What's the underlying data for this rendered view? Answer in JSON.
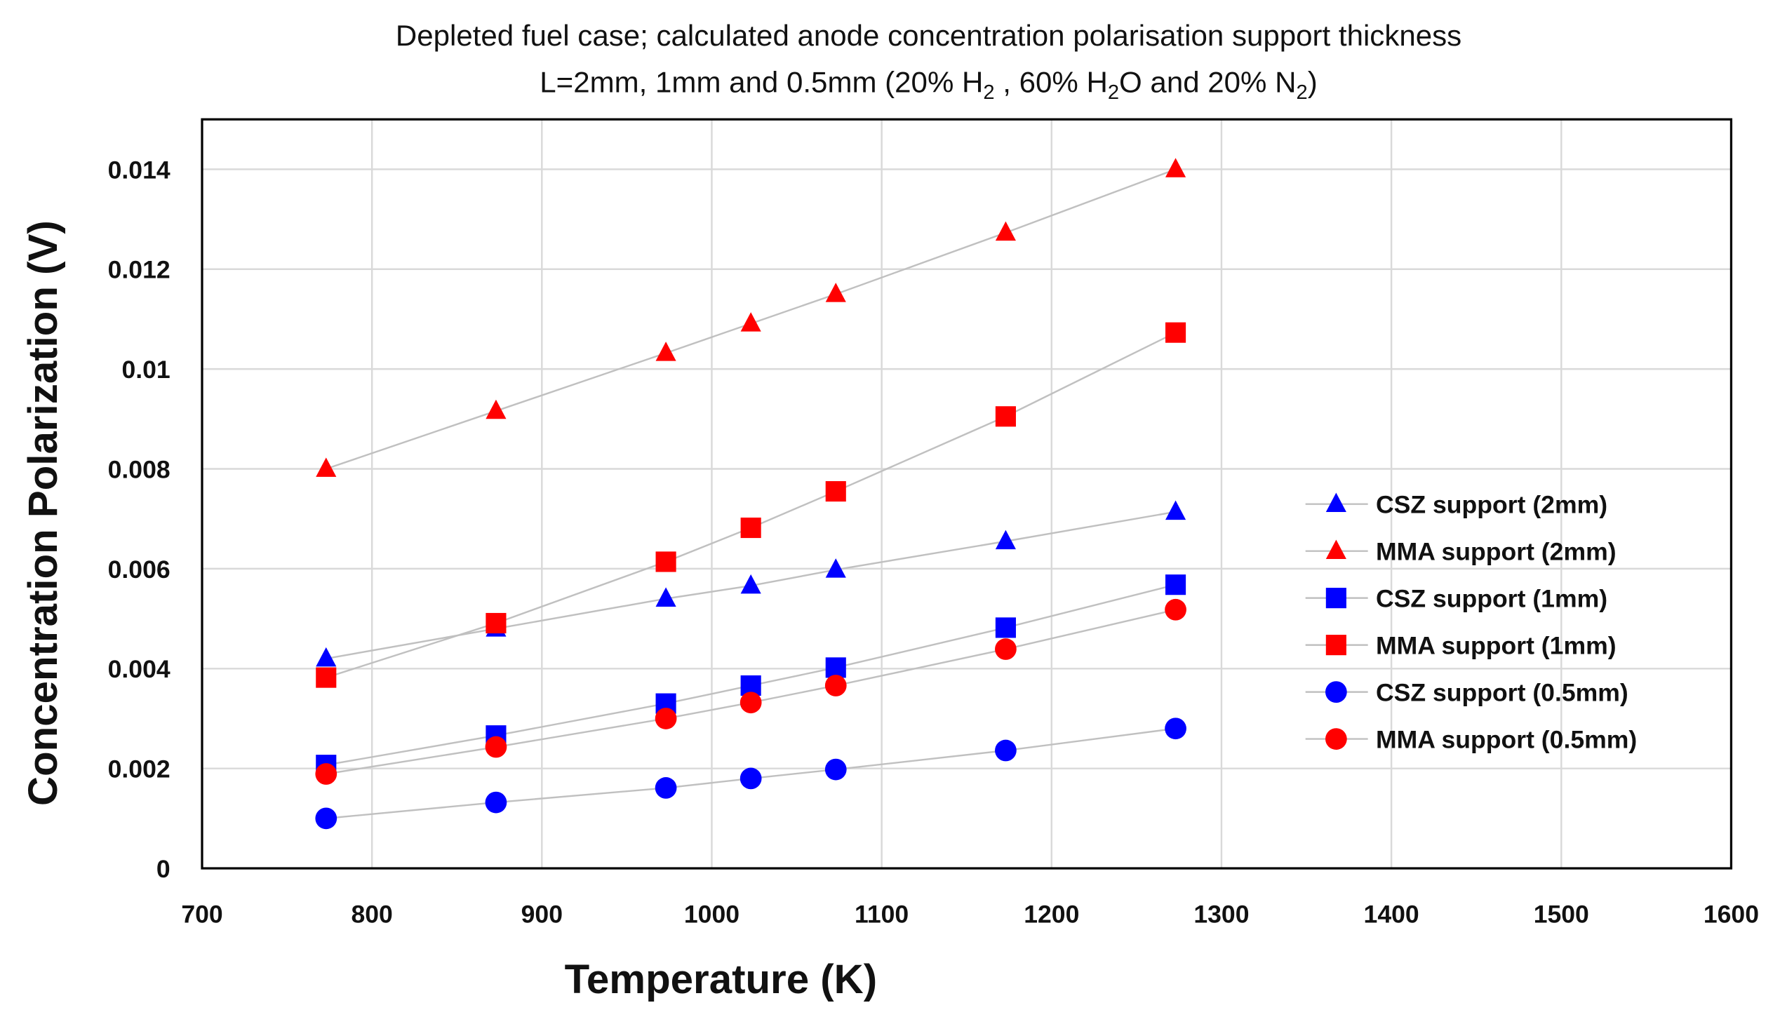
{
  "chart_data": {
    "type": "scatter",
    "title_line1": "Depleted  fuel case; calculated anode concentration polarisation support thickness",
    "title_line2_parts": [
      "L=2mm, 1mm and 0.5mm (20% H",
      "2",
      " , 60% H",
      "2",
      "O and 20% N",
      "2",
      ")"
    ],
    "xlabel": "Temperature (K)",
    "ylabel": "Concentration Polarization (V)",
    "xlim": [
      700,
      1600
    ],
    "ylim": [
      0,
      0.015
    ],
    "xticks": [
      700,
      800,
      900,
      1000,
      1100,
      1200,
      1300,
      1400,
      1500,
      1600
    ],
    "xtick_labels": [
      "700",
      "800",
      "900",
      "1000",
      "1100",
      "1200",
      "1300",
      "1400",
      "1500",
      "1600"
    ],
    "yticks": [
      0,
      0.002,
      0.004,
      0.006,
      0.008,
      0.01,
      0.012,
      0.014
    ],
    "ytick_labels": [
      "0",
      "0.002",
      "0.004",
      "0.006",
      "0.008",
      "0.01",
      "0.012",
      "0.014"
    ],
    "grid": true,
    "legend_position": "right",
    "x": [
      773,
      873,
      973,
      1023,
      1073,
      1173,
      1273
    ],
    "series": [
      {
        "name": "CSZ support (2mm)",
        "marker": "triangle",
        "color": "#0000ff",
        "values": [
          0.0042,
          0.0048,
          0.0054,
          0.00566,
          0.00598,
          0.00655,
          0.00714
        ]
      },
      {
        "name": "MMA support (2mm)",
        "marker": "triangle",
        "color": "#ff0000",
        "values": [
          0.008,
          0.00916,
          0.01032,
          0.01091,
          0.0115,
          0.01273,
          0.014
        ]
      },
      {
        "name": "CSZ support (1mm)",
        "marker": "square",
        "color": "#0000ff",
        "values": [
          0.00207,
          0.00266,
          0.0033,
          0.00366,
          0.00402,
          0.00482,
          0.00568
        ]
      },
      {
        "name": "MMA support (1mm)",
        "marker": "square",
        "color": "#ff0000",
        "values": [
          0.00382,
          0.00491,
          0.00614,
          0.00682,
          0.00755,
          0.00905,
          0.01073
        ]
      },
      {
        "name": "CSZ support (0.5mm)",
        "marker": "circle",
        "color": "#0000ff",
        "values": [
          0.001,
          0.00132,
          0.00161,
          0.0018,
          0.00198,
          0.00236,
          0.0028
        ]
      },
      {
        "name": "MMA support (0.5mm)",
        "marker": "circle",
        "color": "#ff0000",
        "values": [
          0.00189,
          0.00243,
          0.003,
          0.00332,
          0.00366,
          0.00439,
          0.00518
        ]
      }
    ],
    "line_color": "#c0c0c0",
    "grid_color": "#d9d9d9"
  }
}
